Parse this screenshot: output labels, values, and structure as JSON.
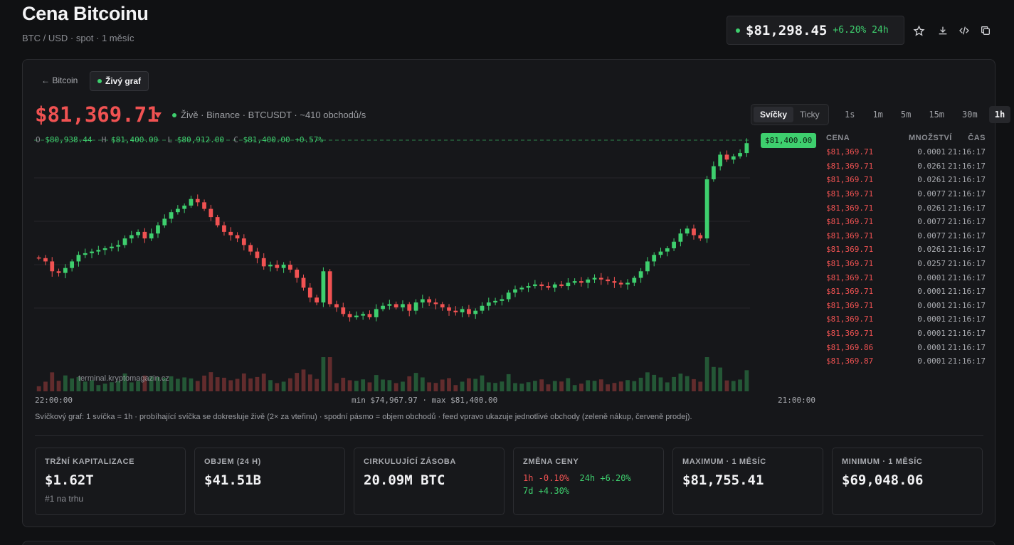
{
  "header": {
    "title": "Cena Bitcoinu",
    "subtitle": "BTC / USD · spot · 1 měsíc",
    "price": "$81,298.45",
    "change": "+6.20% 24h"
  },
  "breadcrumb": {
    "back": "← Bitcoin",
    "current": "Živý graf"
  },
  "live": {
    "price": "$81,369.71",
    "info": "Živě · Binance · BTCUSDT · ~410 obchodů/s"
  },
  "mode_tabs": [
    "Svíčky",
    "Ticky"
  ],
  "timeframes": [
    "1s",
    "1m",
    "5m",
    "15m",
    "30m",
    "1h"
  ],
  "ohlc": {
    "o_label": "O",
    "o": "$80,938.44",
    "h_label": "H",
    "h": "$81,400.00",
    "l_label": "L",
    "l": "$80,912.00",
    "c_label": "C",
    "c": "$81,400.00",
    "pct": "+0.57%"
  },
  "chart": {
    "last_price_tag": "$81,400.00",
    "watermark": "terminal.kryptomagazin.cz",
    "x_start": "22:00:00",
    "x_end": "21:00:00",
    "minmax": "min $74,967.97 · max $81,400.00"
  },
  "chart_data": {
    "type": "candlestick",
    "x_axis_labels": [
      "22:00:00",
      "21:00:00"
    ],
    "y_min": 74967.97,
    "y_max": 81400.0,
    "candles_close_approx": [
      77900,
      77800,
      77500,
      77450,
      77600,
      77800,
      78000,
      78050,
      78100,
      78150,
      78200,
      78250,
      78300,
      78500,
      78600,
      78700,
      78500,
      78650,
      78900,
      79100,
      79300,
      79400,
      79500,
      79700,
      79600,
      79400,
      79150,
      78900,
      78700,
      78600,
      78500,
      78300,
      78100,
      77900,
      77650,
      77700,
      77600,
      77700,
      77550,
      77300,
      77000,
      76700,
      76550,
      77500,
      76500,
      76400,
      76200,
      76100,
      76150,
      76200,
      76100,
      76350,
      76450,
      76500,
      76400,
      76500,
      76300,
      76550,
      76650,
      76550,
      76500,
      76400,
      76300,
      76250,
      76350,
      76200,
      76300,
      76450,
      76550,
      76600,
      76650,
      76850,
      76950,
      77000,
      77050,
      77100,
      77050,
      77000,
      77100,
      77050,
      77150,
      77200,
      77150,
      77250,
      77300,
      77250,
      77200,
      77150,
      77100,
      77150,
      77300,
      77500,
      77800,
      78000,
      78100,
      78200,
      78400,
      78650,
      78800,
      78600,
      78500,
      80300,
      80700,
      81050,
      80900,
      81000,
      81100,
      81400
    ],
    "volume_relative": "bars at bottom, highest around mid-chart and near end",
    "title": "",
    "xlabel": "",
    "ylabel": ""
  },
  "feed": {
    "headers": [
      "CENA",
      "MNOŽSTVÍ",
      "ČAS"
    ],
    "rows": [
      {
        "price": "$81,369.71",
        "qty": "0.0001",
        "time": "21:16:17"
      },
      {
        "price": "$81,369.71",
        "qty": "0.0261",
        "time": "21:16:17"
      },
      {
        "price": "$81,369.71",
        "qty": "0.0261",
        "time": "21:16:17"
      },
      {
        "price": "$81,369.71",
        "qty": "0.0077",
        "time": "21:16:17"
      },
      {
        "price": "$81,369.71",
        "qty": "0.0261",
        "time": "21:16:17"
      },
      {
        "price": "$81,369.71",
        "qty": "0.0077",
        "time": "21:16:17"
      },
      {
        "price": "$81,369.71",
        "qty": "0.0077",
        "time": "21:16:17"
      },
      {
        "price": "$81,369.71",
        "qty": "0.0261",
        "time": "21:16:17"
      },
      {
        "price": "$81,369.71",
        "qty": "0.0257",
        "time": "21:16:17"
      },
      {
        "price": "$81,369.71",
        "qty": "0.0001",
        "time": "21:16:17"
      },
      {
        "price": "$81,369.71",
        "qty": "0.0001",
        "time": "21:16:17"
      },
      {
        "price": "$81,369.71",
        "qty": "0.0001",
        "time": "21:16:17"
      },
      {
        "price": "$81,369.71",
        "qty": "0.0001",
        "time": "21:16:17"
      },
      {
        "price": "$81,369.71",
        "qty": "0.0001",
        "time": "21:16:17"
      },
      {
        "price": "$81,369.86",
        "qty": "0.0001",
        "time": "21:16:17"
      },
      {
        "price": "$81,369.87",
        "qty": "0.0001",
        "time": "21:16:17"
      }
    ]
  },
  "description": "Svíčkový graf: 1 svíčka = 1h · probíhající svíčka se dokresluje živě (2× za vteřinu) · spodní pásmo = objem obchodů · feed vpravo ukazuje jednotlivé obchody (zeleně nákup, červeně prodej).",
  "stats": {
    "market_cap": {
      "label": "TRŽNÍ KAPITALIZACE",
      "value": "$1.62T",
      "sub": "#1 na trhu"
    },
    "volume": {
      "label": "OBJEM (24 H)",
      "value": "$41.51B"
    },
    "supply": {
      "label": "CIRKULUJÍCÍ ZÁSOBA",
      "value": "20.09M BTC"
    },
    "change": {
      "label": "ZMĚNA CENY",
      "h1": "1h -0.10%",
      "h24": "24h +6.20%",
      "d7": "7d +4.30%"
    },
    "max": {
      "label": "MAXIMUM · 1 MĚSÍC",
      "value": "$81,755.41"
    },
    "min": {
      "label": "MINIMUM · 1 MĚSÍC",
      "value": "$69,048.06"
    }
  },
  "colors": {
    "up": "#3ecf6e",
    "down": "#f05252",
    "background": "#101113"
  }
}
